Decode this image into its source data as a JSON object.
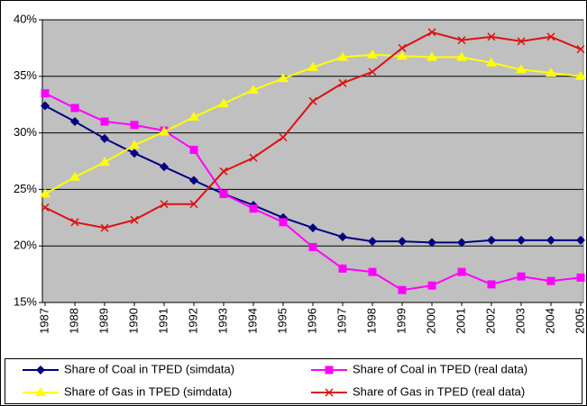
{
  "chart_data": {
    "type": "line",
    "categories": [
      "1987",
      "1988",
      "1989",
      "1990",
      "1991",
      "1992",
      "1993",
      "1994",
      "1995",
      "1996",
      "1997",
      "1998",
      "1999",
      "2000",
      "2001",
      "2002",
      "2003",
      "2004",
      "2005"
    ],
    "series": [
      {
        "name": "Share of Coal in TPED (simdata)",
        "color": "#000080",
        "marker": "diamond",
        "values": [
          32.4,
          31.0,
          29.5,
          28.2,
          27.0,
          25.8,
          24.6,
          23.6,
          22.5,
          21.6,
          20.8,
          20.4,
          20.4,
          20.3,
          20.3,
          20.5,
          20.5,
          20.5,
          20.5
        ]
      },
      {
        "name": "Share of Coal in TPED (real data)",
        "color": "#ff00ff",
        "marker": "square",
        "values": [
          33.5,
          32.2,
          31.0,
          30.7,
          30.2,
          28.5,
          24.6,
          23.3,
          22.1,
          19.9,
          18.0,
          17.7,
          16.1,
          16.5,
          17.7,
          16.6,
          17.3,
          16.9,
          17.2
        ]
      },
      {
        "name": "Share of Gas in TPED (simdata)",
        "color": "#ffff00",
        "marker": "triangle",
        "values": [
          24.6,
          26.1,
          27.4,
          28.9,
          30.1,
          31.4,
          32.6,
          33.8,
          34.8,
          35.8,
          36.7,
          36.9,
          36.8,
          36.7,
          36.7,
          36.2,
          35.6,
          35.3,
          35.0
        ]
      },
      {
        "name": "Share of Gas in TPED (real data)",
        "color": "#dd1111",
        "marker": "x",
        "values": [
          23.4,
          22.1,
          21.6,
          22.3,
          23.7,
          23.7,
          26.6,
          27.8,
          29.6,
          32.8,
          34.4,
          35.4,
          37.5,
          38.9,
          38.2,
          38.5,
          38.1,
          38.5,
          37.4
        ]
      }
    ],
    "ylim": [
      15,
      40
    ],
    "yticks": [
      {
        "value": 15,
        "label": "15%"
      },
      {
        "value": 20,
        "label": "20%"
      },
      {
        "value": 25,
        "label": "25%"
      },
      {
        "value": 30,
        "label": "30%"
      },
      {
        "value": 35,
        "label": "35%"
      },
      {
        "value": 40,
        "label": "40%"
      }
    ],
    "grid": true,
    "legend": "bottom",
    "plot_background": "#c0c0c0"
  }
}
